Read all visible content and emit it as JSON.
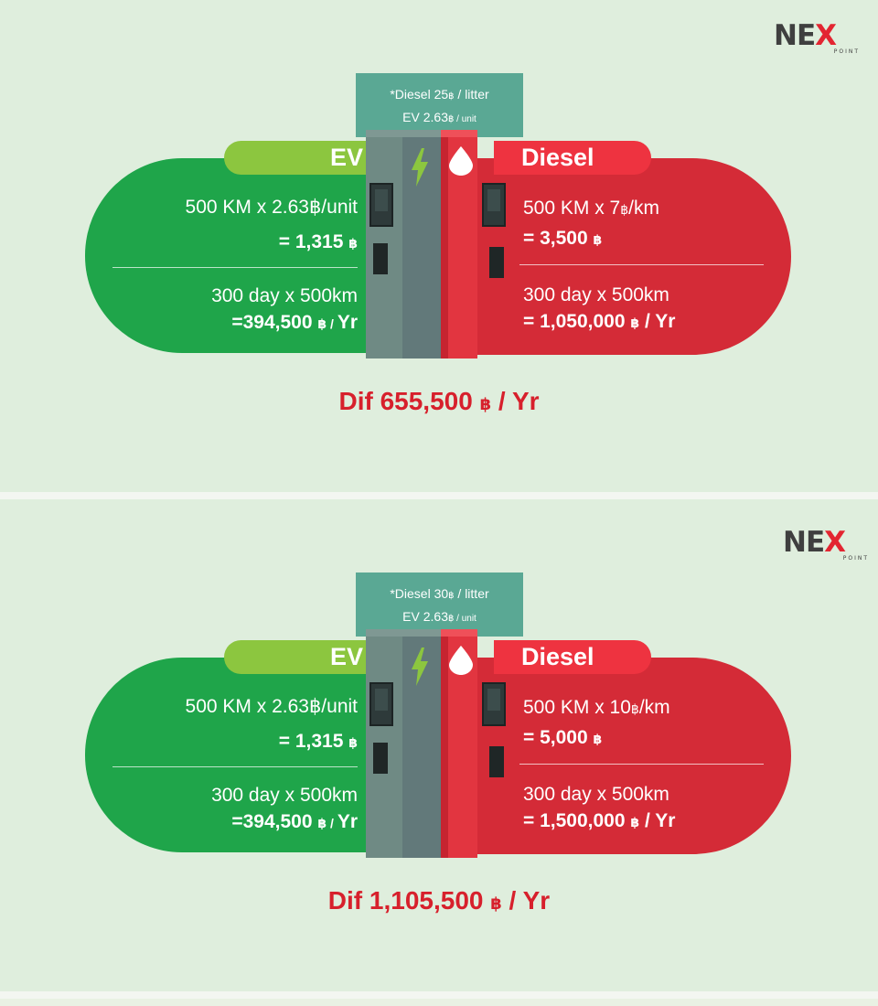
{
  "colors": {
    "background": "#dfeedd",
    "ev_green": "#1fa54a",
    "ev_tab_green": "#8cc63f",
    "diesel_red": "#d42b37",
    "diesel_tab_red": "#ee3340",
    "note_teal": "#5aa894",
    "dif_red": "#d7202c"
  },
  "logo": {
    "word": "NE",
    "x": "X",
    "sub": "POINT"
  },
  "panels": [
    {
      "note": {
        "line1_pre": "*Diesel 25",
        "line1_unit": "฿",
        "line1_post": " / litter",
        "line2_pre": "EV 2.63",
        "line2_unit": "฿ / unit"
      },
      "ev": {
        "label": "EV",
        "row1_line1": "500 KM x 2.63฿/unit",
        "row1_line2": "= 1,315",
        "row1_unit": "฿",
        "row2_line1": "300 day x 500km",
        "row2_line2": "=394,500",
        "row2_unit": "฿ / ",
        "row2_tail": "Yr"
      },
      "diesel": {
        "label": "Diesel",
        "row1_line1_pre": "500 KM x 7",
        "row1_line1_unit": "฿",
        "row1_line1_post": "/km",
        "row1_line2": "= 3,500",
        "row1_unit": "฿",
        "row2_line1": "300 day x 500km",
        "row2_line2": "= 1,050,000",
        "row2_unit": "฿",
        "row2_tail": " / Yr"
      },
      "dif": {
        "pre": "Dif 655,500",
        "unit": "฿",
        "post": " / Yr"
      }
    },
    {
      "note": {
        "line1_pre": "*Diesel 30",
        "line1_unit": "฿",
        "line1_post": " / litter",
        "line2_pre": "EV 2.63",
        "line2_unit": "฿ / unit"
      },
      "ev": {
        "label": "EV",
        "row1_line1": "500 KM x 2.63฿/unit",
        "row1_line2": "= 1,315",
        "row1_unit": "฿",
        "row2_line1": "300 day x 500km",
        "row2_line2": "=394,500",
        "row2_unit": "฿ / ",
        "row2_tail": "Yr"
      },
      "diesel": {
        "label": "Diesel",
        "row1_line1_pre": "500 KM x 10",
        "row1_line1_unit": "฿",
        "row1_line1_post": "/km",
        "row1_line2": "= 5,000",
        "row1_unit": "฿",
        "row2_line1": "300 day x 500km",
        "row2_line2": "= 1,500,000",
        "row2_unit": "฿",
        "row2_tail": " / Yr"
      },
      "dif": {
        "pre": "Dif 1,105,500",
        "unit": "฿",
        "post": " / Yr"
      }
    }
  ]
}
